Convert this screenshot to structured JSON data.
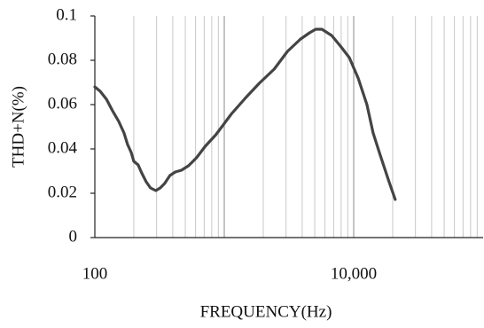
{
  "chart_data": {
    "type": "line",
    "x_label": "FREQUENCY(Hz)",
    "y_label": "THD+N(%)",
    "x": [
      100,
      110,
      123,
      137,
      153,
      168,
      179,
      191,
      200,
      216,
      230,
      249,
      269,
      296,
      320,
      346,
      380,
      418,
      467,
      529,
      610,
      713,
      861,
      1143,
      1469,
      1862,
      2430,
      3076,
      3890,
      4560,
      5085,
      5680,
      6750,
      7900,
      9250,
      10820,
      12650,
      14130,
      16030,
      18750,
      20930
    ],
    "series": [
      {
        "color": "#444444",
        "values": [
          0.068,
          0.066,
          0.0624,
          0.0572,
          0.0524,
          0.0472,
          0.042,
          0.0384,
          0.0344,
          0.0328,
          0.0292,
          0.0252,
          0.0224,
          0.0212,
          0.0224,
          0.0244,
          0.028,
          0.0296,
          0.0304,
          0.0324,
          0.036,
          0.0412,
          0.0464,
          0.056,
          0.0632,
          0.0696,
          0.076,
          0.084,
          0.0896,
          0.0924,
          0.094,
          0.094,
          0.0912,
          0.0864,
          0.0812,
          0.072,
          0.06,
          0.0472,
          0.0372,
          0.0252,
          0.0172
        ]
      }
    ],
    "xscale": "log",
    "xlim": [
      100,
      100000
    ],
    "xticks": [
      100,
      {
        "value": 10000,
        "label": "10,000"
      }
    ],
    "ylim": [
      0,
      0.1
    ],
    "yticks": [
      0,
      0.02,
      0.04,
      0.06,
      0.08,
      0.1
    ],
    "grid": true
  }
}
